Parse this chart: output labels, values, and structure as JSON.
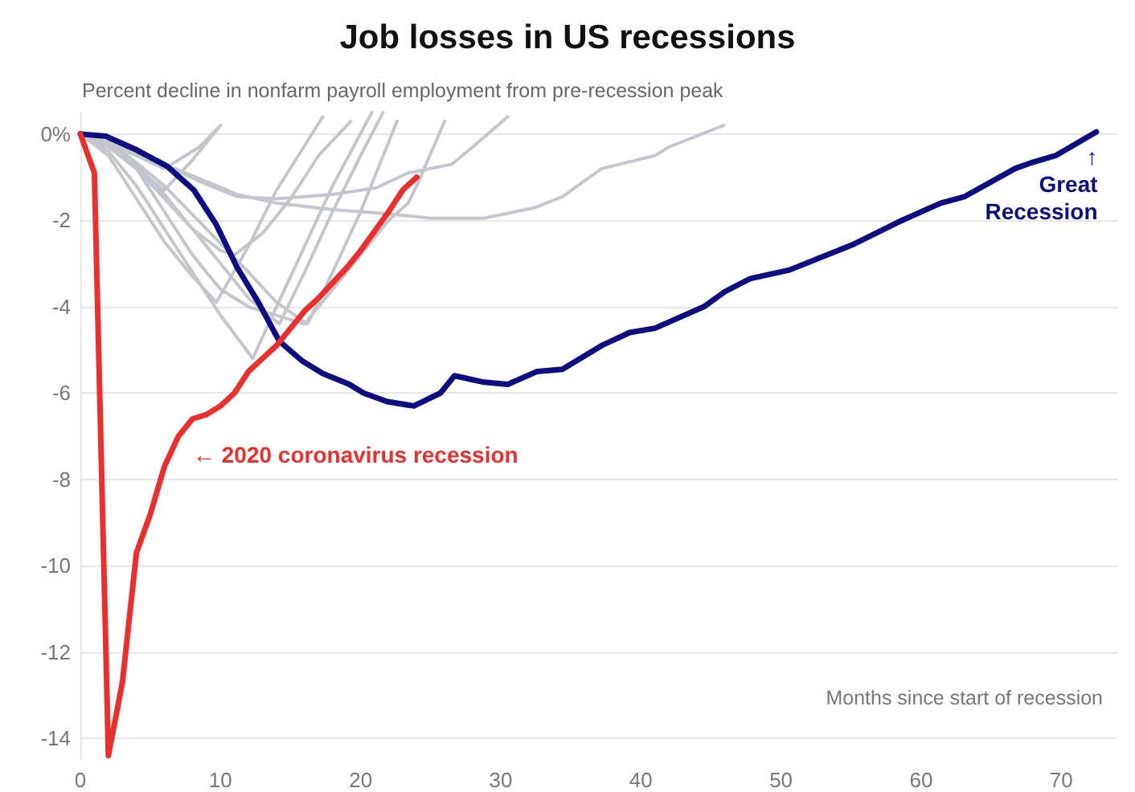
{
  "chart_data": {
    "type": "line",
    "title": "Job losses in US recessions",
    "subtitle": "Percent decline in nonfarm payroll employment from pre-recession peak",
    "xlabel": "Months since start of recession",
    "xlim": [
      0,
      74
    ],
    "xticks": [
      0,
      10,
      20,
      30,
      40,
      50,
      60,
      70
    ],
    "ylim": [
      -14.5,
      0.5
    ],
    "yticks": [
      {
        "value": 0,
        "label": "0%"
      },
      -2,
      -4,
      -6,
      -8,
      -10,
      -12,
      -14
    ],
    "grid": "y",
    "marker": "none",
    "line_style": "solid",
    "series": [
      {
        "color": "#c3c6cc",
        "x": [
          0,
          2,
          4,
          6,
          8,
          10
        ],
        "values": [
          0,
          -0.3,
          -0.8,
          -1.3,
          -0.6,
          0.2
        ]
      },
      {
        "color": "#c3c6cc",
        "x": [
          0,
          2,
          4,
          6,
          8.5,
          9.7
        ],
        "values": [
          0,
          -0.2,
          -0.5,
          -0.8,
          -0.3,
          0.1
        ]
      },
      {
        "color": "#c3c6cc",
        "x": [
          0,
          2,
          4,
          6,
          8,
          10,
          12,
          14,
          16,
          18,
          20,
          22,
          23.4,
          24,
          26
        ],
        "values": [
          0,
          -0.2,
          -0.8,
          -1.8,
          -2.8,
          -3.6,
          -4.0,
          -4.2,
          -4.4,
          -3.6,
          -2.8,
          -2.0,
          -1.6,
          -1.2,
          0.3
        ]
      },
      {
        "color": "#c3c6cc",
        "x": [
          0,
          2,
          4,
          6,
          8,
          10,
          12.3,
          14,
          16,
          18,
          20.8
        ],
        "values": [
          0,
          -0.4,
          -1.2,
          -2.2,
          -3.2,
          -4.2,
          -5.2,
          -4.0,
          -2.6,
          -1.2,
          0.5
        ]
      },
      {
        "color": "#c3c6cc",
        "x": [
          0,
          2,
          4,
          6,
          8,
          9.7,
          12,
          14,
          17.3
        ],
        "values": [
          0,
          -0.5,
          -1.5,
          -2.5,
          -3.3,
          -3.9,
          -2.6,
          -1.3,
          0.4
        ]
      },
      {
        "color": "#c3c6cc",
        "x": [
          0,
          2,
          4,
          6,
          8,
          10,
          12,
          14.2,
          16,
          18,
          20,
          21.6
        ],
        "values": [
          0,
          -0.2,
          -0.7,
          -1.4,
          -2.2,
          -3.0,
          -3.8,
          -4.4,
          -3.2,
          -1.8,
          -0.5,
          0.5
        ]
      },
      {
        "color": "#c3c6cc",
        "x": [
          0,
          3,
          6,
          9,
          12,
          14,
          16.2,
          18,
          20,
          22.6
        ],
        "values": [
          0,
          -0.4,
          -1.2,
          -2.2,
          -3.2,
          -3.9,
          -4.4,
          -3.2,
          -1.8,
          0.3
        ]
      },
      {
        "color": "#c3c6cc",
        "x": [
          0,
          2,
          4,
          6,
          8,
          10,
          11,
          13,
          15,
          17,
          19.3
        ],
        "values": [
          0,
          -0.3,
          -0.8,
          -1.5,
          -2.2,
          -2.7,
          -2.8,
          -2.3,
          -1.5,
          -0.5,
          0.3
        ]
      },
      {
        "color": "#c3c6cc",
        "x": [
          0,
          3,
          6,
          8.5,
          11.2,
          14,
          18,
          21.1,
          23.4,
          26.5,
          28,
          30.5
        ],
        "values": [
          0,
          -0.3,
          -0.7,
          -1.1,
          -1.45,
          -1.5,
          -1.4,
          -1.25,
          -0.9,
          -0.7,
          -0.3,
          0.4
        ]
      },
      {
        "color": "#c3c6cc",
        "x": [
          0,
          3,
          6,
          9,
          11.2,
          14,
          18,
          22,
          25,
          28.8,
          30.3,
          32.5,
          34.4,
          37.2,
          41,
          42,
          45.9
        ],
        "values": [
          0,
          -0.3,
          -0.7,
          -1.1,
          -1.4,
          -1.6,
          -1.75,
          -1.85,
          -1.95,
          -1.95,
          -1.85,
          -1.7,
          -1.45,
          -0.8,
          -0.5,
          -0.3,
          0.2
        ]
      },
      {
        "color": "#0d0d80",
        "x": [
          0,
          1.8,
          3.9,
          6.2,
          8.1,
          9.7,
          11.2,
          12.7,
          14.2,
          15.8,
          17.3,
          19.2,
          20.2,
          21.9,
          23.8,
          25.7,
          26.7,
          28.8,
          30.5,
          32.6,
          34.4,
          37.2,
          39.2,
          41,
          44.5,
          46,
          47.8,
          50.6,
          55.2,
          58.3,
          61.4,
          63.1,
          66.7,
          68,
          69.6,
          72.5
        ],
        "values": [
          0,
          -0.05,
          -0.35,
          -0.75,
          -1.3,
          -2.1,
          -3.1,
          -3.9,
          -4.8,
          -5.25,
          -5.55,
          -5.8,
          -6.0,
          -6.2,
          -6.3,
          -6.0,
          -5.6,
          -5.75,
          -5.8,
          -5.5,
          -5.45,
          -4.9,
          -4.6,
          -4.5,
          -4.0,
          -3.65,
          -3.35,
          -3.15,
          -2.55,
          -2.05,
          -1.6,
          -1.45,
          -0.8,
          -0.65,
          -0.5,
          0.05
        ]
      },
      {
        "color": "#e8302f",
        "x": [
          0,
          1,
          2,
          3,
          4,
          5,
          6,
          7,
          8,
          9,
          10,
          11,
          12,
          13,
          14,
          15,
          16,
          17,
          18,
          19,
          20,
          21,
          22,
          23,
          24
        ],
        "values": [
          0,
          -0.9,
          -14.4,
          -12.7,
          -9.7,
          -8.8,
          -7.7,
          -7.0,
          -6.6,
          -6.5,
          -6.3,
          -6.0,
          -5.5,
          -5.2,
          -4.9,
          -4.5,
          -4.1,
          -3.8,
          -3.45,
          -3.1,
          -2.7,
          -2.25,
          -1.8,
          -1.3,
          -1.0
        ]
      }
    ],
    "annotations": [
      "← 2020 coronavirus recession",
      {
        "text": "↑\nGreat\nRecession",
        "x": 72.6,
        "y": -0.2
      }
    ]
  }
}
